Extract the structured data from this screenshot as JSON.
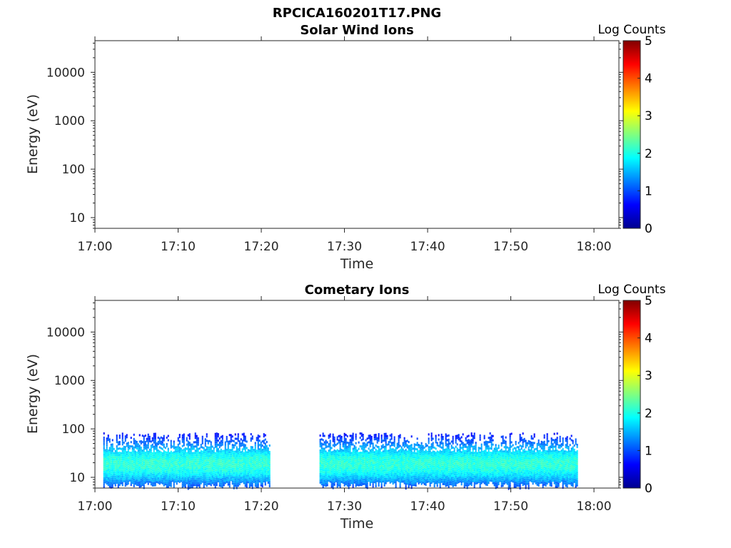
{
  "figure": {
    "title": "RPCICA160201T17.PNG"
  },
  "chart_data": [
    {
      "type": "heatmap",
      "title": "Solar Wind Ions",
      "xlabel": "Time",
      "ylabel": "Energy (eV)",
      "x_ticks": [
        "17:00",
        "17:10",
        "17:20",
        "17:30",
        "17:40",
        "17:50",
        "18:00"
      ],
      "x_range": [
        "17:00",
        "18:03"
      ],
      "y_scale": "log",
      "y_ticks": [
        "10",
        "100",
        "1000",
        "10000"
      ],
      "y_range": [
        6,
        45000
      ],
      "colorbar": {
        "label": "Log Counts",
        "range": [
          0,
          5
        ],
        "ticks": [
          "0",
          "1",
          "2",
          "3",
          "4",
          "5"
        ],
        "colormap": "jet"
      },
      "segments": []
    },
    {
      "type": "heatmap",
      "title": "Cometary Ions",
      "xlabel": "Time",
      "ylabel": "Energy (eV)",
      "x_ticks": [
        "17:00",
        "17:10",
        "17:20",
        "17:30",
        "17:40",
        "17:50",
        "18:00"
      ],
      "x_range": [
        "17:00",
        "18:03"
      ],
      "y_scale": "log",
      "y_ticks": [
        "10",
        "100",
        "1000",
        "10000"
      ],
      "y_range": [
        6,
        45000
      ],
      "colorbar": {
        "label": "Log Counts",
        "range": [
          0,
          5
        ],
        "ticks": [
          "0",
          "1",
          "2",
          "3",
          "4",
          "5"
        ],
        "colormap": "jet"
      },
      "segments": [
        {
          "start": "17:01",
          "end": "17:21",
          "energy_min_eV": 6,
          "energy_max_eV": 85,
          "peak_energy_eV": 20,
          "peak_log_counts": 1.9
        },
        {
          "start": "17:27",
          "end": "17:58",
          "energy_min_eV": 6,
          "energy_max_eV": 85,
          "peak_energy_eV": 20,
          "peak_log_counts": 1.9
        }
      ]
    }
  ]
}
